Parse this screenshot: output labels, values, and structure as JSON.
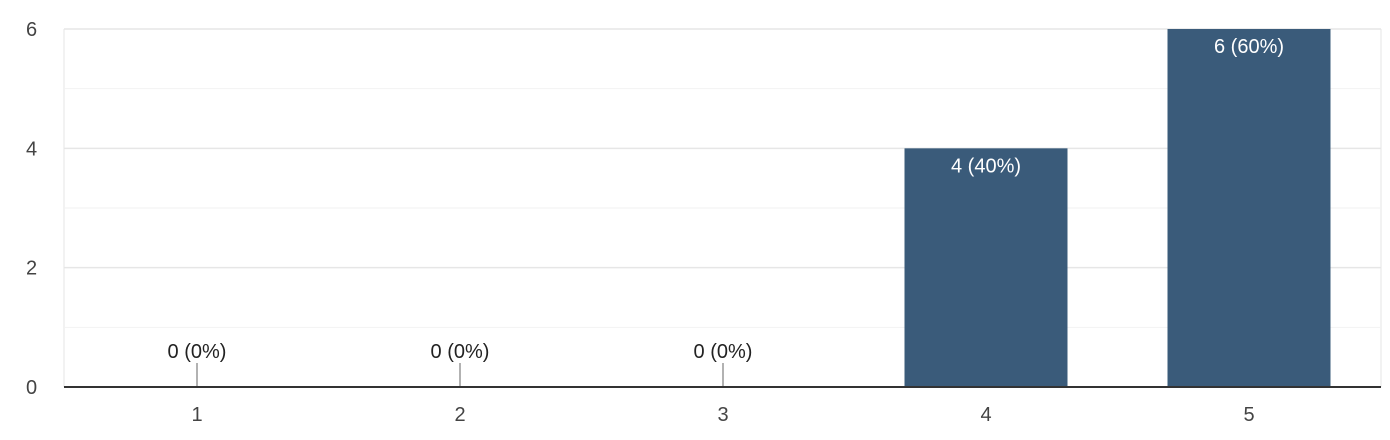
{
  "chart_data": {
    "type": "bar",
    "title": "",
    "xlabel": "",
    "ylabel": "",
    "categories": [
      "1",
      "2",
      "3",
      "4",
      "5"
    ],
    "values": [
      0,
      0,
      0,
      4,
      6
    ],
    "data_labels": [
      "0 (0%)",
      "0 (0%)",
      "0 (0%)",
      "4 (40%)",
      "6 (60%)"
    ],
    "ylim": [
      0,
      6
    ],
    "yticks": [
      0,
      2,
      4,
      6
    ],
    "grid": true,
    "bar_color": "#3a5b7a"
  }
}
